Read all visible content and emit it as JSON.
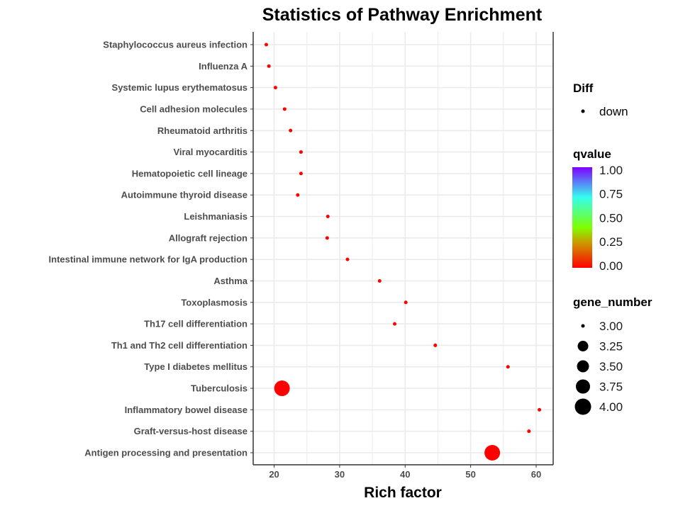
{
  "chart_data": {
    "type": "scatter",
    "title": "Statistics of Pathway Enrichment",
    "xlabel": "Rich factor",
    "ylabel": "",
    "xlim": [
      16.8,
      62.6
    ],
    "xticks": [
      20,
      30,
      40,
      50,
      60
    ],
    "grid": true,
    "legend_placement": "right",
    "point_color": "#ff0000",
    "categories": [
      "Staphylococcus aureus infection",
      "Influenza A",
      "Systemic lupus erythematosus",
      "Cell adhesion molecules",
      "Rheumatoid arthritis",
      "Viral myocarditis",
      "Hematopoietic cell lineage",
      "Autoimmune thyroid disease",
      "Leishmaniasis",
      "Allograft rejection",
      "Intestinal immune network for IgA production",
      "Asthma",
      "Toxoplasmosis",
      "Th17 cell differentiation",
      "Th1 and Th2 cell differentiation",
      "Type I diabetes mellitus",
      "Tuberculosis",
      "Inflammatory bowel disease",
      "Graft-versus-host disease",
      "Antigen processing and presentation"
    ],
    "rich_factor": [
      18.8,
      19.2,
      20.2,
      21.6,
      22.5,
      24.1,
      24.1,
      23.6,
      28.2,
      28.1,
      31.2,
      36.1,
      40.1,
      38.4,
      44.6,
      55.7,
      21.2,
      60.5,
      58.9,
      53.3
    ],
    "gene_number": [
      3,
      3,
      3,
      3,
      3,
      3,
      3,
      3,
      3,
      3,
      3,
      3,
      3,
      3,
      3,
      3,
      4,
      3,
      3,
      4
    ],
    "qvalue": [
      0,
      0,
      0,
      0,
      0,
      0,
      0,
      0,
      0,
      0,
      0,
      0,
      0,
      0,
      0,
      0,
      0,
      0,
      0,
      0
    ],
    "legend": {
      "diff": {
        "title": "Diff",
        "items": [
          "down"
        ]
      },
      "qvalue": {
        "title": "qvalue",
        "ticks": [
          "1.00",
          "0.75",
          "0.50",
          "0.25",
          "0.00"
        ],
        "colors": [
          "#8000ff",
          "#3399ff",
          "#33ffee",
          "#7fff00",
          "#ff0000"
        ]
      },
      "gene_number": {
        "title": "gene_number",
        "ticks": [
          "3.00",
          "3.25",
          "3.50",
          "3.75",
          "4.00"
        ]
      }
    }
  }
}
